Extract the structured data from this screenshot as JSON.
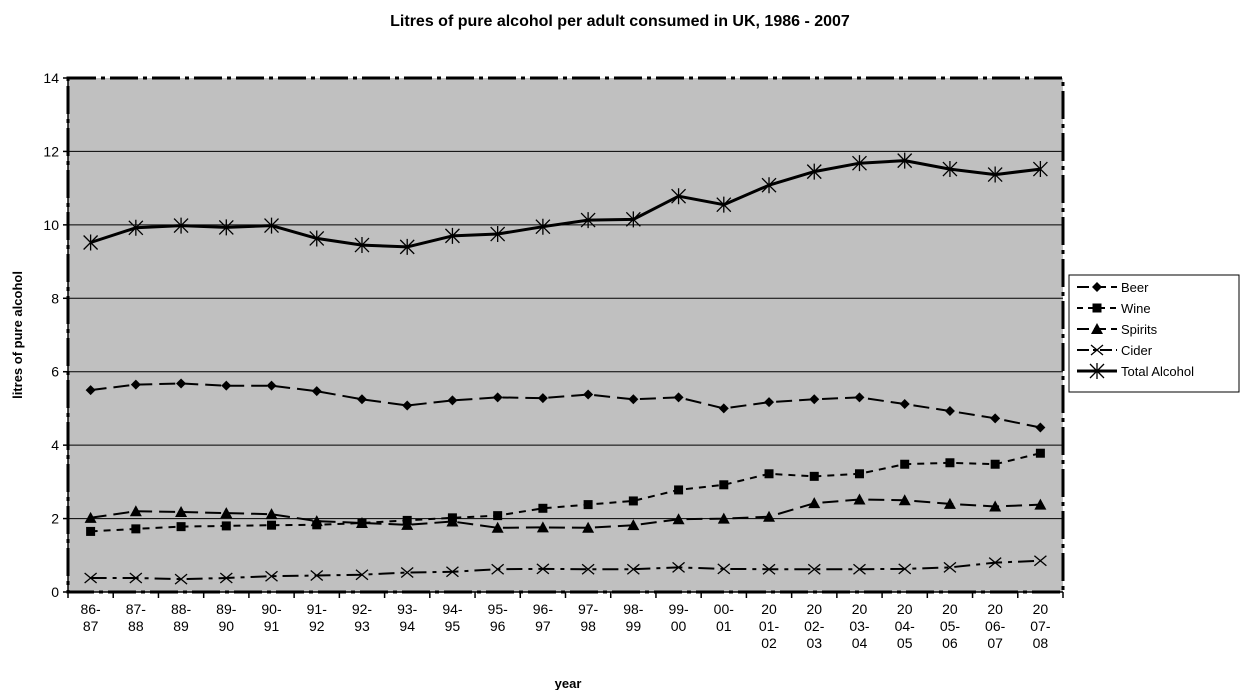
{
  "chart_data": {
    "type": "line",
    "title": "Litres of pure alcohol per adult consumed in UK, 1986 - 2007",
    "xlabel": "year",
    "ylabel": "litres of pure alcohol",
    "ylim": [
      0,
      14
    ],
    "yticks": [
      "0",
      "2",
      "4",
      "6",
      "8",
      "10",
      "12",
      "14"
    ],
    "grid": "horizontal",
    "legend_position": "right",
    "plot_background": "#c0c0c0",
    "categories": [
      "86-87",
      "87-88",
      "88-89",
      "89-90",
      "90-91",
      "91-92",
      "92-93",
      "93-94",
      "94-95",
      "95-96",
      "96-97",
      "97-98",
      "98-99",
      "99-00",
      "00-01",
      "2001-02",
      "2002-03",
      "2003-04",
      "2004-05",
      "2005-06",
      "2006-07",
      "2007-08"
    ],
    "category_labels": [
      [
        "86-",
        "87"
      ],
      [
        "87-",
        "88"
      ],
      [
        "88-",
        "89"
      ],
      [
        "89-",
        "90"
      ],
      [
        "90-",
        "91"
      ],
      [
        "91-",
        "92"
      ],
      [
        "92-",
        "93"
      ],
      [
        "93-",
        "94"
      ],
      [
        "94-",
        "95"
      ],
      [
        "95-",
        "96"
      ],
      [
        "96-",
        "97"
      ],
      [
        "97-",
        "98"
      ],
      [
        "98-",
        "99"
      ],
      [
        "99-",
        "00"
      ],
      [
        "00-",
        "01"
      ],
      [
        "20",
        "01-",
        "02"
      ],
      [
        "20",
        "02-",
        "03"
      ],
      [
        "20",
        "03-",
        "04"
      ],
      [
        "20",
        "04-",
        "05"
      ],
      [
        "20",
        "05-",
        "06"
      ],
      [
        "20",
        "06-",
        "07"
      ],
      [
        "20",
        "07-",
        "08"
      ]
    ],
    "series": [
      {
        "name": "Beer",
        "marker": "diamond",
        "dash": "long",
        "values": [
          5.5,
          5.65,
          5.68,
          5.62,
          5.62,
          5.47,
          5.25,
          5.08,
          5.22,
          5.3,
          5.28,
          5.38,
          5.25,
          5.3,
          5.0,
          5.17,
          5.25,
          5.3,
          5.12,
          4.93,
          4.73,
          4.48
        ]
      },
      {
        "name": "Wine",
        "marker": "square",
        "dash": "short",
        "values": [
          1.65,
          1.72,
          1.78,
          1.8,
          1.82,
          1.83,
          1.88,
          1.95,
          2.02,
          2.08,
          2.28,
          2.38,
          2.48,
          2.78,
          2.92,
          3.22,
          3.15,
          3.22,
          3.48,
          3.52,
          3.48,
          3.78
        ]
      },
      {
        "name": "Spirits",
        "marker": "triangle",
        "dash": "long",
        "values": [
          2.02,
          2.2,
          2.18,
          2.15,
          2.12,
          1.93,
          1.88,
          1.83,
          1.92,
          1.75,
          1.76,
          1.75,
          1.82,
          1.98,
          2.0,
          2.05,
          2.42,
          2.52,
          2.5,
          2.4,
          2.33,
          2.38
        ]
      },
      {
        "name": "Cider",
        "marker": "x",
        "dash": "dashdot",
        "values": [
          0.38,
          0.38,
          0.35,
          0.38,
          0.43,
          0.45,
          0.47,
          0.53,
          0.55,
          0.62,
          0.63,
          0.62,
          0.62,
          0.67,
          0.63,
          0.62,
          0.62,
          0.62,
          0.63,
          0.67,
          0.8,
          0.85
        ]
      },
      {
        "name": "Total Alcohol",
        "marker": "asterisk",
        "dash": "solid",
        "values": [
          9.52,
          9.92,
          9.98,
          9.93,
          9.98,
          9.63,
          9.45,
          9.4,
          9.7,
          9.75,
          9.95,
          10.13,
          10.15,
          10.78,
          10.55,
          11.08,
          11.45,
          11.68,
          11.75,
          11.52,
          11.37,
          11.52
        ]
      }
    ]
  }
}
